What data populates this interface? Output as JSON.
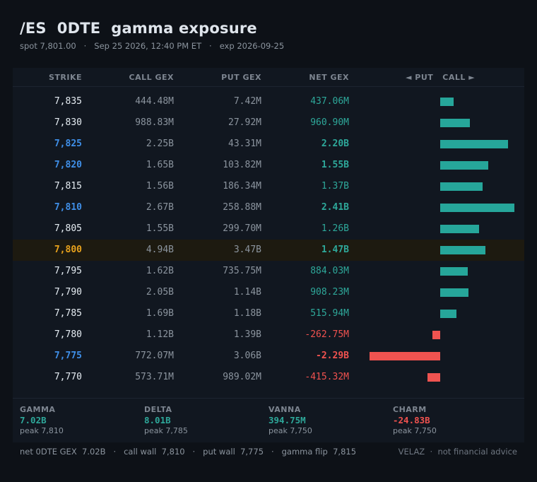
{
  "header": {
    "title": "/ES  0DTE  gamma exposure",
    "spot": "spot 7,801.00",
    "timestamp": "Sep 25 2026, 12:40 PM ET",
    "expiry": "exp 2026-09-25"
  },
  "table": {
    "columns": {
      "strike": "STRIKE",
      "call": "CALL GEX",
      "put": "PUT GEX",
      "net": "NET GEX",
      "direction": "◄ PUT   CALL ►"
    },
    "rows": [
      {
        "strike": "7,835",
        "call": "444.48M",
        "put": "7.42M",
        "net": "437.06M",
        "net_value": 0.43706,
        "style": "normal"
      },
      {
        "strike": "7,830",
        "call": "988.83M",
        "put": "27.92M",
        "net": "960.90M",
        "net_value": 0.9609,
        "style": "normal"
      },
      {
        "strike": "7,825",
        "call": "2.25B",
        "put": "43.31M",
        "net": "2.20B",
        "net_value": 2.2,
        "style": "highlight"
      },
      {
        "strike": "7,820",
        "call": "1.65B",
        "put": "103.82M",
        "net": "1.55B",
        "net_value": 1.55,
        "style": "highlight"
      },
      {
        "strike": "7,815",
        "call": "1.56B",
        "put": "186.34M",
        "net": "1.37B",
        "net_value": 1.37,
        "style": "normal"
      },
      {
        "strike": "7,810",
        "call": "2.67B",
        "put": "258.88M",
        "net": "2.41B",
        "net_value": 2.41,
        "style": "highlight"
      },
      {
        "strike": "7,805",
        "call": "1.55B",
        "put": "299.70M",
        "net": "1.26B",
        "net_value": 1.26,
        "style": "normal"
      },
      {
        "strike": "7,800",
        "call": "4.94B",
        "put": "3.47B",
        "net": "1.47B",
        "net_value": 1.47,
        "style": "spot"
      },
      {
        "strike": "7,795",
        "call": "1.62B",
        "put": "735.75M",
        "net": "884.03M",
        "net_value": 0.88403,
        "style": "normal"
      },
      {
        "strike": "7,790",
        "call": "2.05B",
        "put": "1.14B",
        "net": "908.23M",
        "net_value": 0.90823,
        "style": "normal"
      },
      {
        "strike": "7,785",
        "call": "1.69B",
        "put": "1.18B",
        "net": "515.94M",
        "net_value": 0.51594,
        "style": "normal"
      },
      {
        "strike": "7,780",
        "call": "1.12B",
        "put": "1.39B",
        "net": "-262.75M",
        "net_value": -0.26275,
        "style": "normal"
      },
      {
        "strike": "7,775",
        "call": "772.07M",
        "put": "3.06B",
        "net": "-2.29B",
        "net_value": -2.29,
        "style": "highlight"
      },
      {
        "strike": "7,770",
        "call": "573.71M",
        "put": "989.02M",
        "net": "-415.32M",
        "net_value": -0.41532,
        "style": "normal"
      }
    ]
  },
  "stats": [
    {
      "label": "GAMMA",
      "value": "7.02B",
      "peak": "peak 7,810",
      "color": "#2ea89a"
    },
    {
      "label": "DELTA",
      "value": "8.01B",
      "peak": "peak 7,785",
      "color": "#2ea89a"
    },
    {
      "label": "VANNA",
      "value": "394.75M",
      "peak": "peak 7,750",
      "color": "#2ea89a"
    },
    {
      "label": "CHARM",
      "value": "-24.83B",
      "peak": "peak 7,750",
      "color": "#f0524f"
    }
  ],
  "footer": {
    "summary": "net 0DTE GEX  7.02B   ·   call wall  7,810   ·   put wall  7,775   ·   gamma flip  7,815",
    "credit": "VELAZ  ·  not financial advice"
  },
  "colors": {
    "positive": "#26a69a",
    "negative": "#ef5350",
    "highlight_strike": "#3f8fe8",
    "spot_strike": "#e8a21c"
  }
}
